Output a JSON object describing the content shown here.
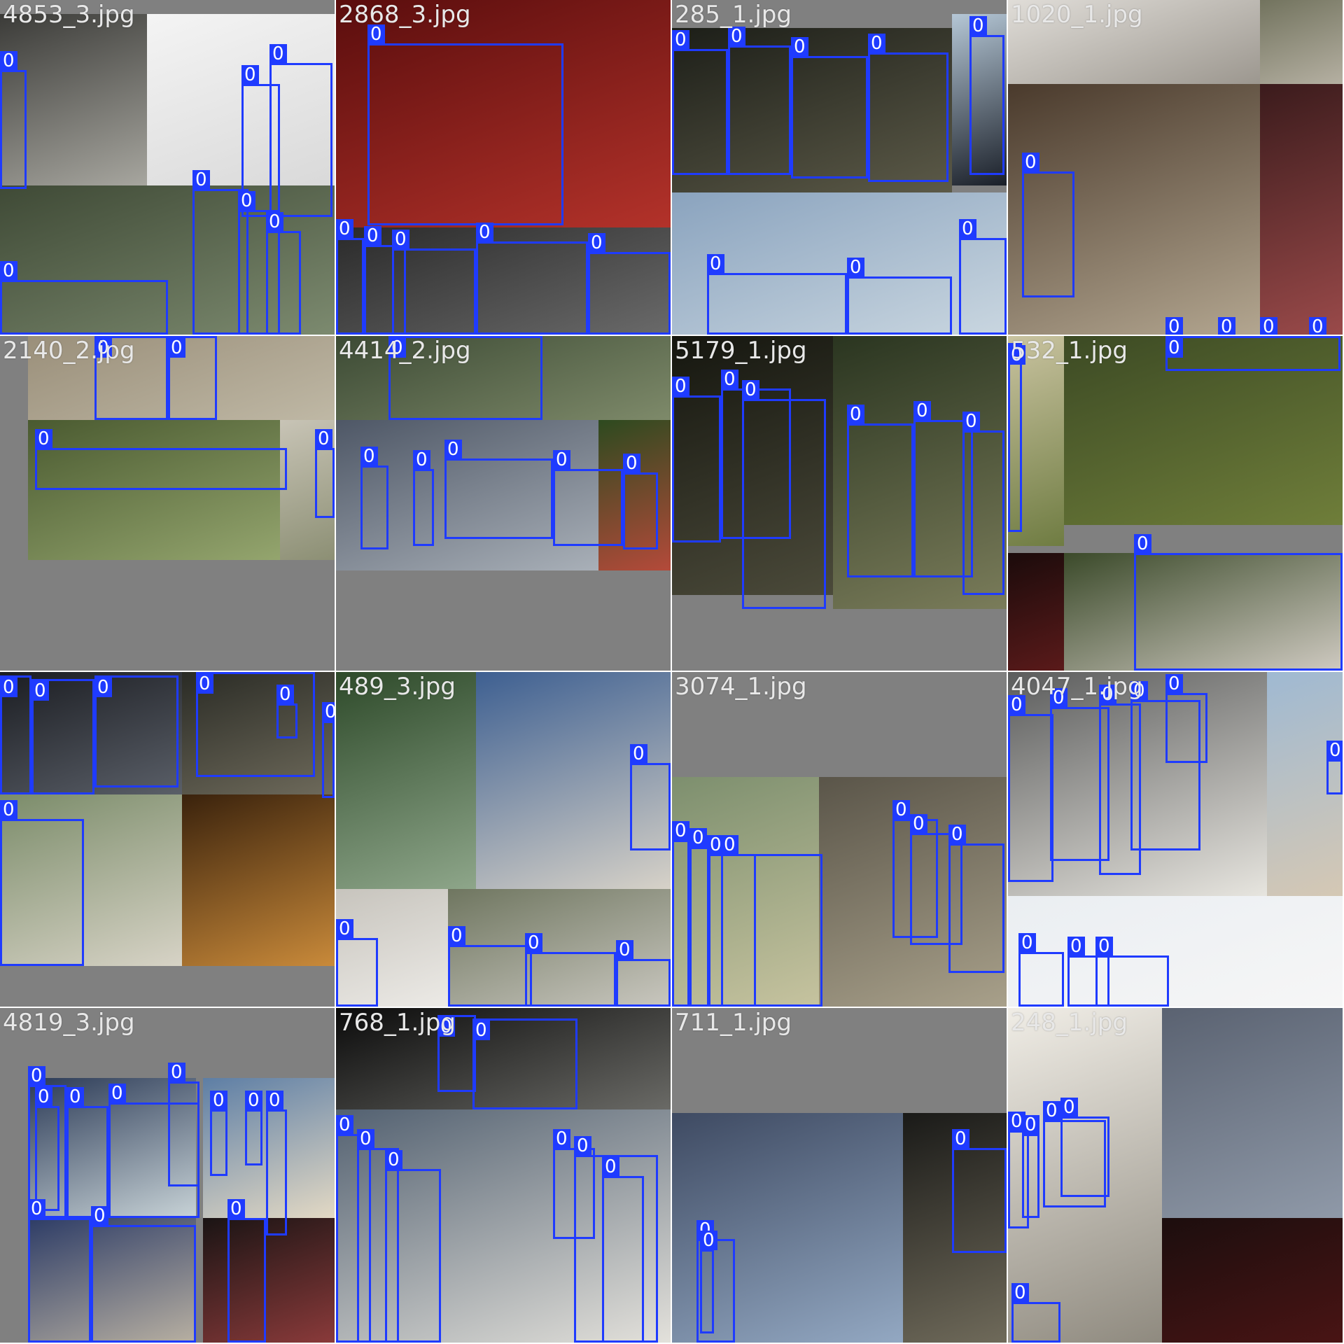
{
  "mosaic": {
    "tiles": [
      {
        "name": "4853_3.jpg"
      },
      {
        "name": "2868_3.jpg"
      },
      {
        "name": "285_1.jpg"
      },
      {
        "name": "1020_1.jpg"
      },
      {
        "name": "2140_2.jpg"
      },
      {
        "name": "4414_2.jpg"
      },
      {
        "name": "5179_1.jpg"
      },
      {
        "name": "532_1.jpg"
      },
      {
        "name": ""
      },
      {
        "name": "489_3.jpg"
      },
      {
        "name": "3074_1.jpg"
      },
      {
        "name": "4047_1.jpg"
      },
      {
        "name": "4819_3.jpg"
      },
      {
        "name": "768_1.jpg"
      },
      {
        "name": "711_1.jpg"
      },
      {
        "name": "248_1.jpg"
      }
    ]
  },
  "box_label": "0",
  "colors": {
    "box": "#1f3bff",
    "background": "#808080"
  }
}
